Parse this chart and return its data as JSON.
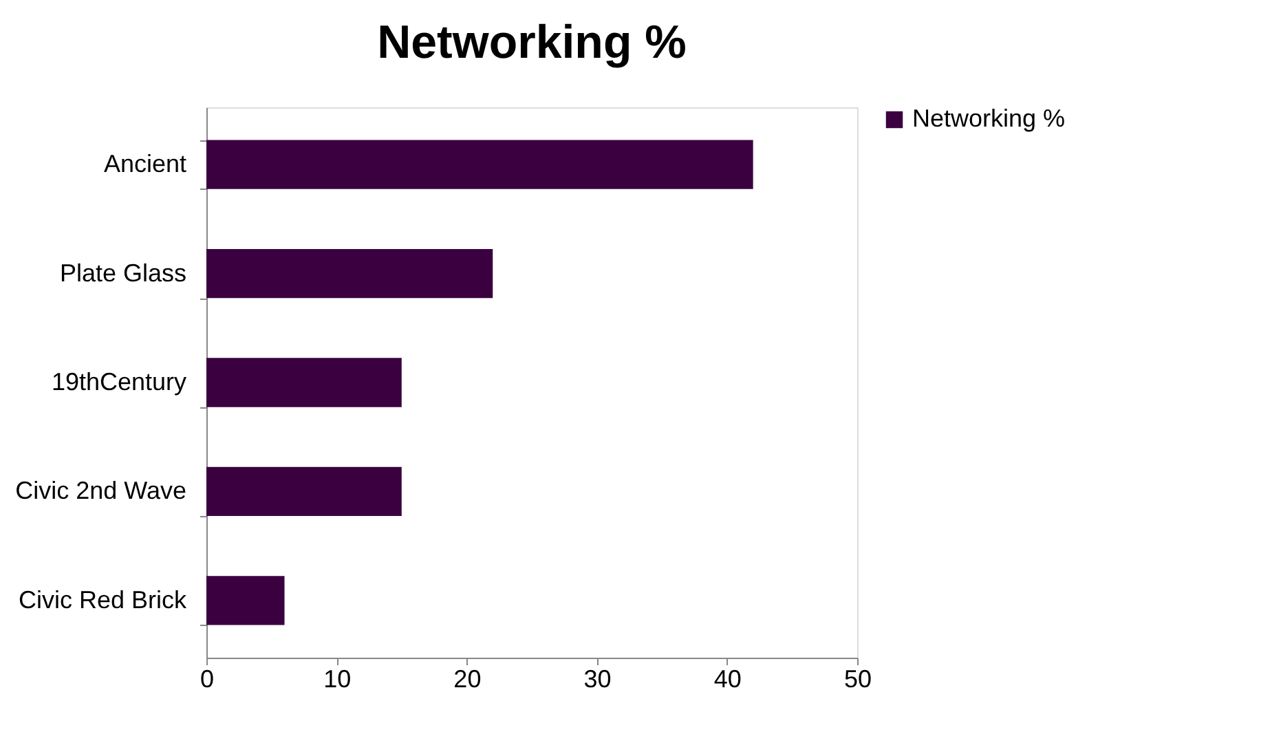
{
  "chart_data": {
    "type": "bar",
    "orientation": "horizontal",
    "title": "Networking %",
    "categories": [
      "Ancient",
      "Plate Glass",
      "19thCentury",
      "Civic 2nd Wave",
      "Civic Red Brick"
    ],
    "series": [
      {
        "name": "Networking %",
        "color": "#3b0040",
        "values": [
          42,
          22,
          15,
          15,
          6
        ]
      }
    ],
    "xlim": [
      0,
      50
    ],
    "xticks": [
      0,
      10,
      20,
      30,
      40,
      50
    ],
    "grid": false,
    "legend": "right"
  }
}
